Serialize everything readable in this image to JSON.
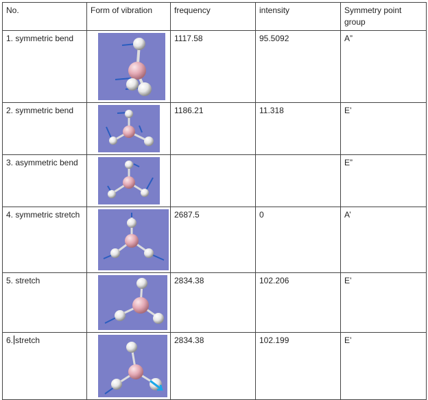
{
  "headers": [
    "No.",
    "Form of vibration",
    "frequency",
    "intensity",
    "Symmetry point group"
  ],
  "rows": [
    {
      "no": "1. symmetric bend",
      "frequency": "1117.58",
      "intensity": "95.5092",
      "symmetry": "A”"
    },
    {
      "no": "2. symmetric bend",
      "frequency": "1186.21",
      "intensity": "11.318",
      "symmetry": "E’"
    },
    {
      "no": "3. asymmetric bend",
      "frequency": "",
      "intensity": "",
      "symmetry": "E”"
    },
    {
      "no": "4. symmetric stretch",
      "frequency": "2687.5",
      "intensity": "0",
      "symmetry": "A’"
    },
    {
      "no": "5. stretch",
      "frequency": "2834.38",
      "intensity": "102.206",
      "symmetry": "E’"
    },
    {
      "no_prefix": "6.",
      "no_suffix": "stretch",
      "frequency": "2834.38",
      "intensity": "102.199",
      "symmetry": "E’"
    }
  ],
  "colors": {
    "molecule_bg": "#7b7fc8",
    "boron_atom": "#e3a9b4",
    "hydrogen_atom": "#e6e6e6",
    "displacement_vector": "#2a5dbf"
  }
}
